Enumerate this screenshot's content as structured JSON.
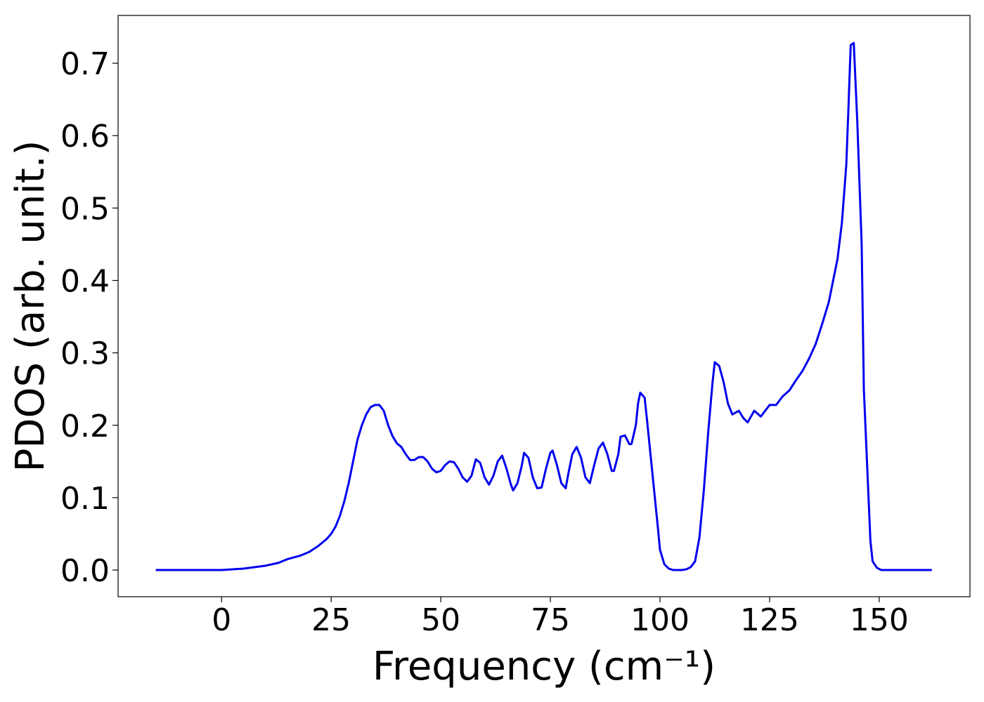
{
  "chart_data": {
    "type": "line",
    "xlabel": "Frequency (cm⁻¹)",
    "ylabel": "PDOS (arb. unit.)",
    "xlim": [
      -23.6,
      170.7
    ],
    "ylim": [
      -0.0368,
      0.766
    ],
    "xticks": [
      0,
      25,
      50,
      75,
      100,
      125,
      150
    ],
    "yticks": [
      {
        "value": 0,
        "label": "0.0"
      },
      0.1,
      0.2,
      0.3,
      0.4,
      0.5,
      0.6,
      0.7
    ],
    "x": [
      -15,
      -10,
      -5,
      0,
      5,
      10,
      13,
      15,
      18,
      20,
      22,
      24,
      25,
      26,
      27,
      28,
      29,
      30,
      31,
      32,
      33,
      34,
      35,
      36,
      37,
      38,
      39,
      40,
      41,
      42,
      43,
      44,
      45,
      46,
      47,
      48,
      49,
      50,
      51,
      52,
      53,
      54,
      55,
      56,
      57,
      58,
      59,
      60,
      61,
      62,
      63,
      64,
      65,
      66,
      66.5,
      67.5,
      68.5,
      69,
      70,
      71,
      72,
      73,
      74,
      75,
      75.5,
      76.5,
      77.5,
      78.5,
      79,
      80,
      81,
      82,
      83,
      84,
      85,
      86,
      87,
      88,
      89,
      89.5,
      90.5,
      91,
      92,
      93,
      93.5,
      94.5,
      95,
      95.5,
      96.5,
      97,
      97.5,
      98.5,
      99.5,
      100,
      101,
      102,
      103,
      105,
      106,
      107,
      108,
      109,
      110,
      111,
      112,
      112.5,
      113.5,
      114.5,
      115.5,
      116.5,
      118,
      119,
      120,
      121.5,
      123,
      125,
      126.5,
      128,
      129.5,
      131,
      132.5,
      134,
      135.5,
      137,
      138.5,
      139.5,
      140.5,
      141.5,
      142.5,
      143,
      143.5,
      144.2,
      145,
      146,
      146.5,
      147.5,
      148,
      148.5,
      149.5,
      150.5,
      162
    ],
    "series": [
      {
        "name": "PDOS",
        "color": "#0000ee",
        "values": [
          0,
          0,
          0,
          0,
          0.002,
          0.006,
          0.01,
          0.015,
          0.02,
          0.025,
          0.033,
          0.043,
          0.05,
          0.06,
          0.075,
          0.095,
          0.12,
          0.15,
          0.18,
          0.2,
          0.215,
          0.225,
          0.228,
          0.228,
          0.22,
          0.2,
          0.185,
          0.175,
          0.17,
          0.16,
          0.152,
          0.152,
          0.156,
          0.156,
          0.15,
          0.14,
          0.135,
          0.137,
          0.145,
          0.15,
          0.149,
          0.14,
          0.128,
          0.122,
          0.13,
          0.153,
          0.148,
          0.128,
          0.118,
          0.13,
          0.15,
          0.158,
          0.14,
          0.118,
          0.11,
          0.12,
          0.145,
          0.162,
          0.155,
          0.128,
          0.113,
          0.114,
          0.14,
          0.162,
          0.165,
          0.145,
          0.12,
          0.113,
          0.13,
          0.16,
          0.17,
          0.155,
          0.128,
          0.12,
          0.145,
          0.168,
          0.176,
          0.16,
          0.137,
          0.137,
          0.16,
          0.184,
          0.186,
          0.174,
          0.174,
          0.2,
          0.23,
          0.245,
          0.238,
          0.21,
          0.18,
          0.12,
          0.06,
          0.028,
          0.008,
          0.002,
          0,
          0,
          0.001,
          0.004,
          0.012,
          0.045,
          0.11,
          0.19,
          0.26,
          0.287,
          0.282,
          0.26,
          0.23,
          0.215,
          0.22,
          0.21,
          0.204,
          0.22,
          0.212,
          0.228,
          0.228,
          0.24,
          0.248,
          0.262,
          0.275,
          0.292,
          0.312,
          0.34,
          0.37,
          0.4,
          0.43,
          0.48,
          0.56,
          0.64,
          0.725,
          0.728,
          0.62,
          0.45,
          0.25,
          0.11,
          0.04,
          0.012,
          0.003,
          0,
          0
        ]
      }
    ]
  }
}
